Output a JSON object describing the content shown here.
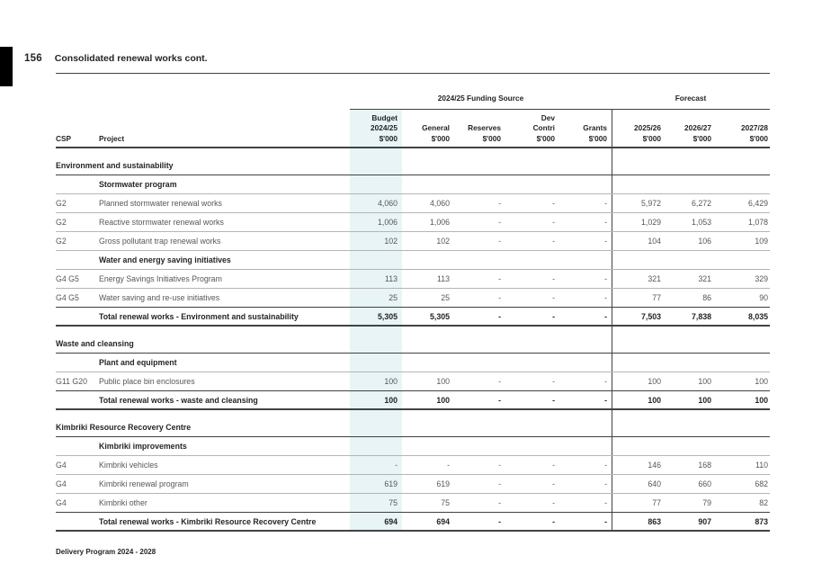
{
  "page": {
    "number": "156",
    "title": "Consolidated renewal works cont.",
    "footer": "Delivery Program 2024 - 2028"
  },
  "colors": {
    "highlight": "#e8f4f5",
    "line_light": "#b3b5b7",
    "line_dark": "#3f4143",
    "line_thick": "#414345",
    "text": "#55575a",
    "text_bold": "#232527"
  },
  "table": {
    "group_headers": {
      "funding": "2024/25 Funding Source",
      "forecast": "Forecast"
    },
    "columns": [
      {
        "key": "csp",
        "lines": [
          "",
          "",
          "CSP"
        ],
        "align": "left"
      },
      {
        "key": "project",
        "lines": [
          "",
          "",
          "Project"
        ],
        "align": "left"
      },
      {
        "key": "budget",
        "lines": [
          "Budget",
          "2024/25",
          "$'000"
        ],
        "align": "right"
      },
      {
        "key": "general",
        "lines": [
          "",
          "General",
          "$'000"
        ],
        "align": "right"
      },
      {
        "key": "reserves",
        "lines": [
          "",
          "Reserves",
          "$'000"
        ],
        "align": "right"
      },
      {
        "key": "dev_contri",
        "lines": [
          "Dev",
          "Contri",
          "$'000"
        ],
        "align": "right"
      },
      {
        "key": "grants",
        "lines": [
          "",
          "Grants",
          "$'000"
        ],
        "align": "right"
      },
      {
        "key": "fy2025_26",
        "lines": [
          "",
          "2025/26",
          "$'000"
        ],
        "align": "right"
      },
      {
        "key": "fy2026_27",
        "lines": [
          "",
          "2026/27",
          "$'000"
        ],
        "align": "right"
      },
      {
        "key": "fy2027_28",
        "lines": [
          "",
          "2027/28",
          "$'000"
        ],
        "align": "right"
      }
    ],
    "rows": [
      {
        "type": "gap"
      },
      {
        "type": "section",
        "label": "Environment and sustainability"
      },
      {
        "type": "subheader",
        "label": "Stormwater program"
      },
      {
        "type": "data",
        "csp": "G2",
        "project": "Planned stormwater renewal works",
        "values": [
          "4,060",
          "4,060",
          "-",
          "-",
          "-",
          "5,972",
          "6,272",
          "6,429"
        ]
      },
      {
        "type": "data",
        "csp": "G2",
        "project": "Reactive stormwater renewal works",
        "values": [
          "1,006",
          "1,006",
          "-",
          "-",
          "-",
          "1,029",
          "1,053",
          "1,078"
        ]
      },
      {
        "type": "data",
        "csp": "G2",
        "project": "Gross pollutant trap renewal works",
        "values": [
          "102",
          "102",
          "-",
          "-",
          "-",
          "104",
          "106",
          "109"
        ]
      },
      {
        "type": "subheader",
        "label": "Water and energy saving initiatives"
      },
      {
        "type": "data",
        "csp": "G4 G5",
        "project": "Energy Savings Initiatives Program",
        "values": [
          "113",
          "113",
          "-",
          "-",
          "-",
          "321",
          "321",
          "329"
        ]
      },
      {
        "type": "data",
        "csp": "G4 G5",
        "project": "Water saving and re-use initiatives",
        "values": [
          "25",
          "25",
          "-",
          "-",
          "-",
          "77",
          "86",
          "90"
        ]
      },
      {
        "type": "total",
        "project": "Total renewal works - Environment and sustainability",
        "values": [
          "5,305",
          "5,305",
          "-",
          "-",
          "-",
          "7,503",
          "7,838",
          "8,035"
        ]
      },
      {
        "type": "gap"
      },
      {
        "type": "section",
        "label": "Waste and cleansing"
      },
      {
        "type": "subheader",
        "label": "Plant and equipment"
      },
      {
        "type": "data",
        "csp": "G11 G20",
        "project": "Public place bin enclosures",
        "values": [
          "100",
          "100",
          "-",
          "-",
          "-",
          "100",
          "100",
          "100"
        ]
      },
      {
        "type": "total",
        "project": "Total renewal works - waste and cleansing",
        "values": [
          "100",
          "100",
          "-",
          "-",
          "-",
          "100",
          "100",
          "100"
        ]
      },
      {
        "type": "gap"
      },
      {
        "type": "section",
        "label": "Kimbriki Resource Recovery Centre"
      },
      {
        "type": "subheader",
        "label": "Kimbriki improvements"
      },
      {
        "type": "data",
        "csp": "G4",
        "project": "Kimbriki vehicles",
        "values": [
          "-",
          "-",
          "-",
          "-",
          "-",
          "146",
          "168",
          "110"
        ]
      },
      {
        "type": "data",
        "csp": "G4",
        "project": "Kimbriki renewal program",
        "values": [
          "619",
          "619",
          "-",
          "-",
          "-",
          "640",
          "660",
          "682"
        ]
      },
      {
        "type": "data",
        "csp": "G4",
        "project": "Kimbriki other",
        "values": [
          "75",
          "75",
          "-",
          "-",
          "-",
          "77",
          "79",
          "82"
        ]
      },
      {
        "type": "total",
        "project": "Total renewal works - Kimbriki Resource Recovery Centre",
        "values": [
          "694",
          "694",
          "-",
          "-",
          "-",
          "863",
          "907",
          "873"
        ]
      }
    ]
  }
}
